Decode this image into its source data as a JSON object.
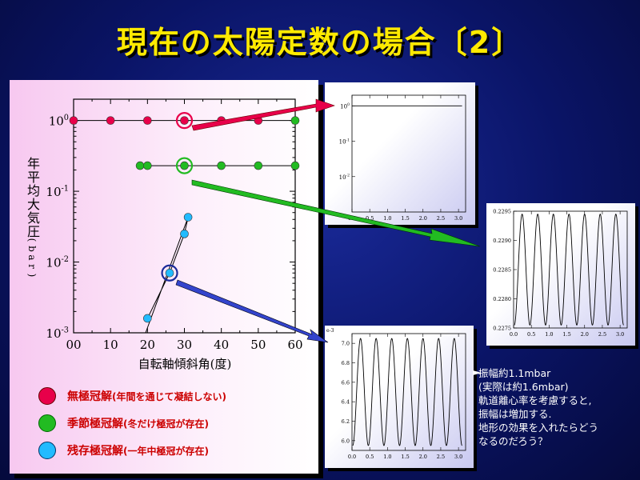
{
  "slide": {
    "title": "現在の太陽定数の場合〔2〕"
  },
  "chart_data": [
    {
      "type": "scatter",
      "xlabel": "自転軸傾斜角(度)",
      "ylabel": "年平均大気圧(bar)",
      "xlim": [
        0,
        60
      ],
      "ylim": [
        0.001,
        2
      ],
      "yscale": "log",
      "xticks": [
        "00",
        "10",
        "20",
        "30",
        "40",
        "50",
        "60"
      ],
      "yticks": [
        {
          "base": "10",
          "exp": "0",
          "value": 1
        },
        {
          "base": "10",
          "exp": "-1",
          "value": 0.1
        },
        {
          "base": "10",
          "exp": "-2",
          "value": 0.01
        },
        {
          "base": "10",
          "exp": "-3",
          "value": 0.001
        }
      ],
      "series": [
        {
          "name": "無極冠解",
          "note": "(年間を通じて凝結しない)",
          "color": "#e8004a",
          "points": [
            [
              0,
              1
            ],
            [
              10,
              1
            ],
            [
              20,
              1
            ],
            [
              30,
              1
            ],
            [
              40,
              1
            ],
            [
              50,
              1
            ]
          ]
        },
        {
          "name": "季節極冠解",
          "note": "(冬だけ極冠が存在)",
          "color": "#22bb22",
          "points": [
            [
              60,
              1
            ],
            [
              18,
              0.23
            ],
            [
              20,
              0.23
            ],
            [
              30,
              0.23
            ],
            [
              40,
              0.23
            ],
            [
              50,
              0.23
            ],
            [
              60,
              0.23
            ]
          ]
        },
        {
          "name": "残存極冠解",
          "note": "(一年中極冠が存在)",
          "color": "#22bbff",
          "points": [
            [
              20,
              0.0016
            ],
            [
              26,
              0.007
            ],
            [
              30,
              0.025
            ],
            [
              31,
              0.043
            ]
          ]
        }
      ],
      "highlighted": [
        {
          "x": 30,
          "y": 1,
          "color": "#e8004a"
        },
        {
          "x": 30,
          "y": 0.23,
          "color": "#22bb22"
        },
        {
          "x": 26,
          "y": 0.007,
          "color": "#1a2a9a"
        }
      ]
    },
    {
      "type": "line",
      "ylim": [
        0.001,
        2
      ],
      "xlim": [
        0,
        3.2
      ],
      "yscale": "log",
      "xticks": [
        "0.0",
        "0.5",
        "1.0",
        "1.5",
        "2.0",
        "2.5",
        "3.0"
      ],
      "yticks": [
        {
          "base": "10",
          "exp": "0",
          "value": 1
        },
        {
          "base": "10",
          "exp": "-1",
          "value": 0.1
        },
        {
          "base": "10",
          "exp": "-2",
          "value": 0.01
        }
      ],
      "series": [
        {
          "values_constant": 1
        }
      ]
    },
    {
      "type": "line",
      "ylim": [
        0.2275,
        0.2295
      ],
      "xlim": [
        0,
        3.2
      ],
      "xticks": [
        "0.0",
        "0.5",
        "1.0",
        "1.5",
        "2.0",
        "2.5",
        "3.0"
      ],
      "yticks": [
        "0.2275",
        "0.2280",
        "0.2285",
        "0.2290",
        "0.2295"
      ],
      "cycles": 7,
      "mid": 0.2285,
      "amplitude": 0.00095
    },
    {
      "type": "line",
      "ylim": [
        5.9,
        7.1
      ],
      "xlim": [
        0,
        3.2
      ],
      "xticks": [
        "0.0",
        "0.5",
        "1.0",
        "1.5",
        "2.0",
        "2.5",
        "3.0"
      ],
      "yticks": [
        "6.0",
        "6.2",
        "6.4",
        "6.6",
        "6.8",
        "7.0"
      ],
      "top_label": "e-3",
      "cycles": 7,
      "mid": 6.5,
      "amplitude": 0.55
    }
  ],
  "note": {
    "lines": [
      "振幅約1.1mbar",
      "(実際は約1.6mbar)",
      "軌道離心率を考慮すると,",
      "振幅は増加する.",
      "地形の効果を入れたらどう",
      "なるのだろう？"
    ]
  }
}
